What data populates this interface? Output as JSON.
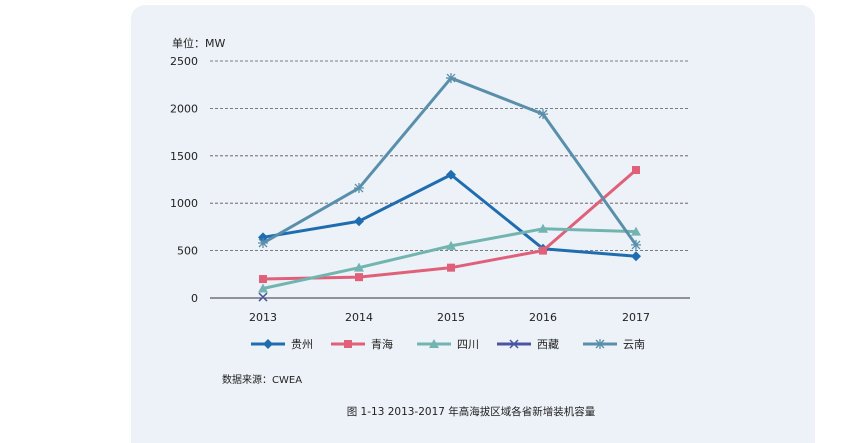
{
  "chart_data": {
    "type": "line",
    "unit_label": "单位：MW",
    "categories": [
      "2013",
      "2014",
      "2015",
      "2016",
      "2017"
    ],
    "y_ticks": [
      0,
      500,
      1000,
      1500,
      2000,
      2500
    ],
    "ylim": [
      0,
      2500
    ],
    "grid": "horizontal dashed",
    "legend_position": "bottom",
    "series": [
      {
        "name": "贵州",
        "color": "#1f6db0",
        "marker": "diamond",
        "values": [
          640,
          810,
          1300,
          520,
          440
        ]
      },
      {
        "name": "青海",
        "color": "#e0607a",
        "marker": "square",
        "values": [
          200,
          220,
          320,
          500,
          1350
        ]
      },
      {
        "name": "四川",
        "color": "#72b5b0",
        "marker": "triangle",
        "values": [
          100,
          320,
          550,
          730,
          700
        ]
      },
      {
        "name": "西藏",
        "color": "#4a55a2",
        "marker": "x",
        "values": [
          10,
          null,
          null,
          null,
          null
        ]
      },
      {
        "name": "云南",
        "color": "#5a8fac",
        "marker": "star",
        "values": [
          580,
          1160,
          2320,
          1940,
          560
        ]
      }
    ],
    "source": "数据来源：CWEA",
    "caption": "图 1-13  2013-2017 年高海拔区域各省新增装机容量"
  }
}
